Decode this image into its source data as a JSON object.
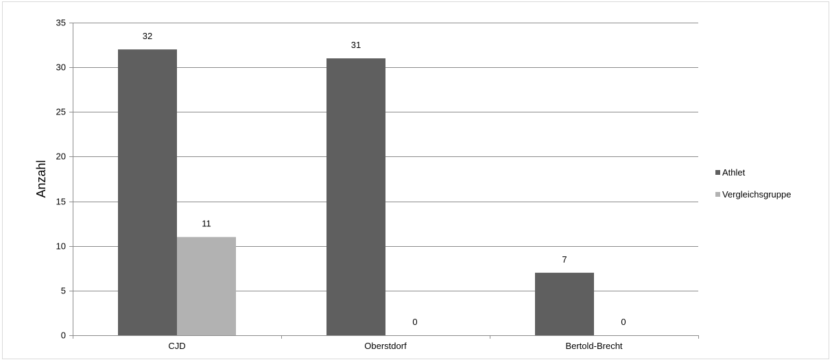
{
  "chart_data": {
    "type": "bar",
    "title": "",
    "xlabel": "",
    "ylabel": "Anzahl",
    "categories": [
      "CJD",
      "Oberstdorf",
      "Bertold-Brecht"
    ],
    "series": [
      {
        "name": "Athlet",
        "values": [
          32,
          31,
          7
        ],
        "color": "#5f5f5f"
      },
      {
        "name": "Vergleichsgruppe",
        "values": [
          11,
          0,
          0
        ],
        "color": "#b2b2b2"
      }
    ],
    "ylim": [
      0,
      35
    ],
    "yticks": [
      0,
      5,
      10,
      15,
      20,
      25,
      30,
      35
    ],
    "grid": true,
    "legend_position": "right",
    "data_labels": true
  }
}
